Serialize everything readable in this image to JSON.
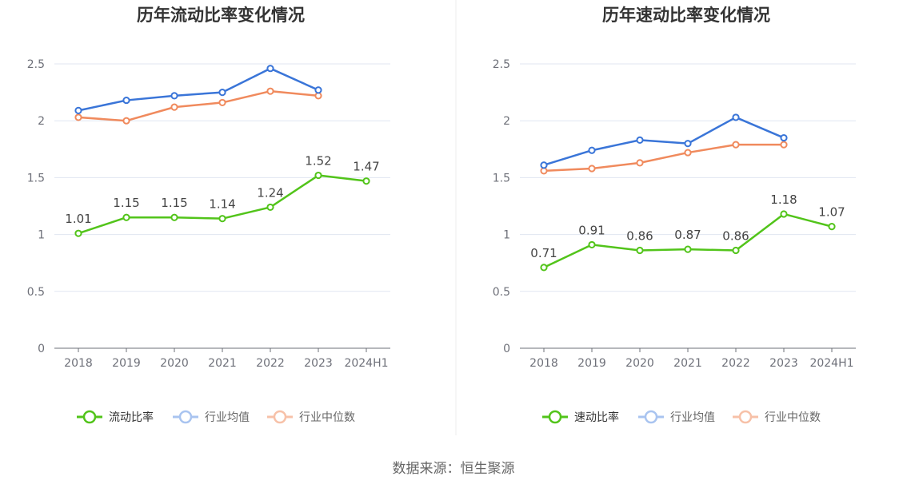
{
  "footer": {
    "source": "数据来源：恒生聚源"
  },
  "colors": {
    "primary": "#52c41a",
    "average": "#3a75d8",
    "median": "#f08a5d",
    "grid": "#e0e6f1",
    "axis": "#6e7079"
  },
  "chart_data": [
    {
      "type": "line",
      "title": "历年流动比率变化情况",
      "xlabel": "",
      "ylabel": "",
      "categories": [
        "2018",
        "2019",
        "2020",
        "2021",
        "2022",
        "2023",
        "2024H1"
      ],
      "ylim": [
        0,
        2.5
      ],
      "yticks": [
        0,
        0.5,
        1,
        1.5,
        2,
        2.5
      ],
      "grid": true,
      "legend_position": "bottom",
      "series": [
        {
          "name": "流动比率",
          "values": [
            1.01,
            1.15,
            1.15,
            1.14,
            1.24,
            1.52,
            1.47
          ],
          "show_labels": true
        },
        {
          "name": "行业均值",
          "values": [
            2.09,
            2.18,
            2.22,
            2.25,
            2.46,
            2.27,
            null
          ],
          "show_labels": false
        },
        {
          "name": "行业中位数",
          "values": [
            2.03,
            2.0,
            2.12,
            2.16,
            2.26,
            2.22,
            null
          ],
          "show_labels": false
        }
      ]
    },
    {
      "type": "line",
      "title": "历年速动比率变化情况",
      "xlabel": "",
      "ylabel": "",
      "categories": [
        "2018",
        "2019",
        "2020",
        "2021",
        "2022",
        "2023",
        "2024H1"
      ],
      "ylim": [
        0,
        2.5
      ],
      "yticks": [
        0,
        0.5,
        1,
        1.5,
        2,
        2.5
      ],
      "grid": true,
      "legend_position": "bottom",
      "series": [
        {
          "name": "速动比率",
          "values": [
            0.71,
            0.91,
            0.86,
            0.87,
            0.86,
            1.18,
            1.07
          ],
          "show_labels": true
        },
        {
          "name": "行业均值",
          "values": [
            1.61,
            1.74,
            1.83,
            1.8,
            2.03,
            1.85,
            null
          ],
          "show_labels": false
        },
        {
          "name": "行业中位数",
          "values": [
            1.56,
            1.58,
            1.63,
            1.72,
            1.79,
            1.79,
            null
          ],
          "show_labels": false
        }
      ]
    }
  ]
}
